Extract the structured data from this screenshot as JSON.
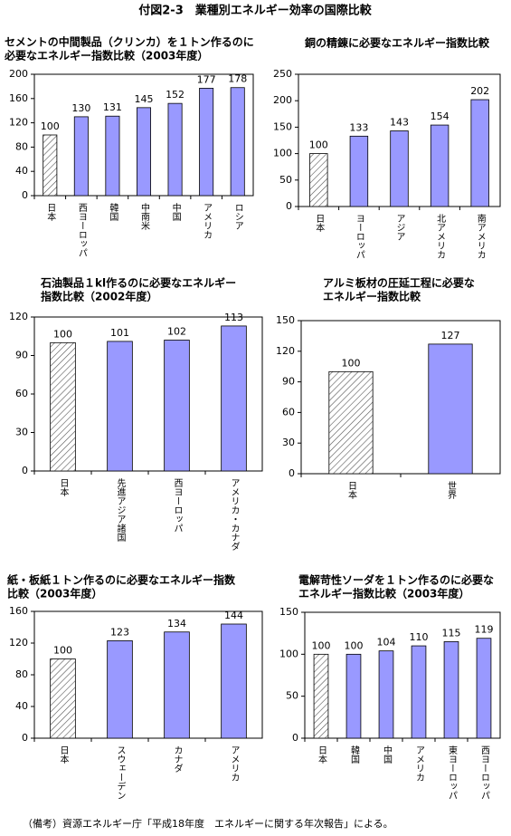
{
  "title": "付図2-3　業種別エネルギー効率の国際比較",
  "note": "（備考）資源エネルギー庁「平成18年度　エネルギーに関する年次報告」による。",
  "chart_data": [
    {
      "type": "bar",
      "title": [
        "セメントの中間製品（クリンカ）を１トン作るのに",
        "必要なエネルギー指数比較（2003年度）"
      ],
      "categories": [
        "日本",
        "西ヨーロッパ",
        "韓国",
        "中南米",
        "中国",
        "アメリカ",
        "ロシア"
      ],
      "values": [
        100,
        130,
        131,
        145,
        152,
        177,
        178
      ],
      "color": "#9999ff",
      "hatched_index": 0,
      "ylim": [
        0,
        200
      ],
      "yticks": [
        0,
        40,
        80,
        120,
        160,
        200
      ]
    },
    {
      "type": "bar",
      "title": [
        "銅の精錬に必要なエネルギー指数比較"
      ],
      "categories": [
        "日本",
        "ヨーロッパ",
        "アジア",
        "北アメリカ",
        "南アメリカ"
      ],
      "values": [
        100,
        133,
        143,
        154,
        202
      ],
      "color": "#9999ff",
      "hatched_index": 0,
      "ylim": [
        0,
        250
      ],
      "yticks": [
        0,
        50,
        100,
        150,
        200,
        250
      ]
    },
    {
      "type": "bar",
      "title": [
        "石油製品１kl作るのに必要なエネルギー",
        "指数比較（2002年度）"
      ],
      "categories": [
        "日本",
        "先進アジア諸国",
        "西ヨーロッパ",
        "アメリカ・カナダ"
      ],
      "values": [
        100,
        101,
        102,
        113
      ],
      "color": "#9999ff",
      "hatched_index": 0,
      "ylim": [
        0,
        120
      ],
      "yticks": [
        0,
        30,
        60,
        90,
        120
      ]
    },
    {
      "type": "bar",
      "title": [
        "アルミ板材の圧延工程に必要な",
        "エネルギー指数比較"
      ],
      "categories": [
        "日本",
        "世界"
      ],
      "values": [
        100,
        127
      ],
      "color": "#9999ff",
      "hatched_index": 0,
      "ylim": [
        0,
        150
      ],
      "yticks": [
        0,
        30,
        60,
        90,
        120,
        150
      ]
    },
    {
      "type": "bar",
      "title": [
        "紙・板紙１トン作るのに必要なエネルギー指数",
        "比較（2003年度）"
      ],
      "categories": [
        "日本",
        "スウェーデン",
        "カナダ",
        "アメリカ"
      ],
      "values": [
        100,
        123,
        134,
        144
      ],
      "color": "#9999ff",
      "hatched_index": 0,
      "ylim": [
        0,
        160
      ],
      "yticks": [
        0,
        40,
        80,
        120,
        160
      ]
    },
    {
      "type": "bar",
      "title": [
        "電解苛性ソーダを１トン作るのに必要な",
        "エネルギー指数比較（2003年度）"
      ],
      "categories": [
        "日本",
        "韓国",
        "中国",
        "アメリカ",
        "東ヨーロッパ",
        "西ヨーロッパ"
      ],
      "values": [
        100,
        100,
        104,
        110,
        115,
        119
      ],
      "color": "#9999ff",
      "hatched_index": 0,
      "ylim": [
        0,
        150
      ],
      "yticks": [
        0,
        50,
        100,
        150
      ]
    }
  ]
}
